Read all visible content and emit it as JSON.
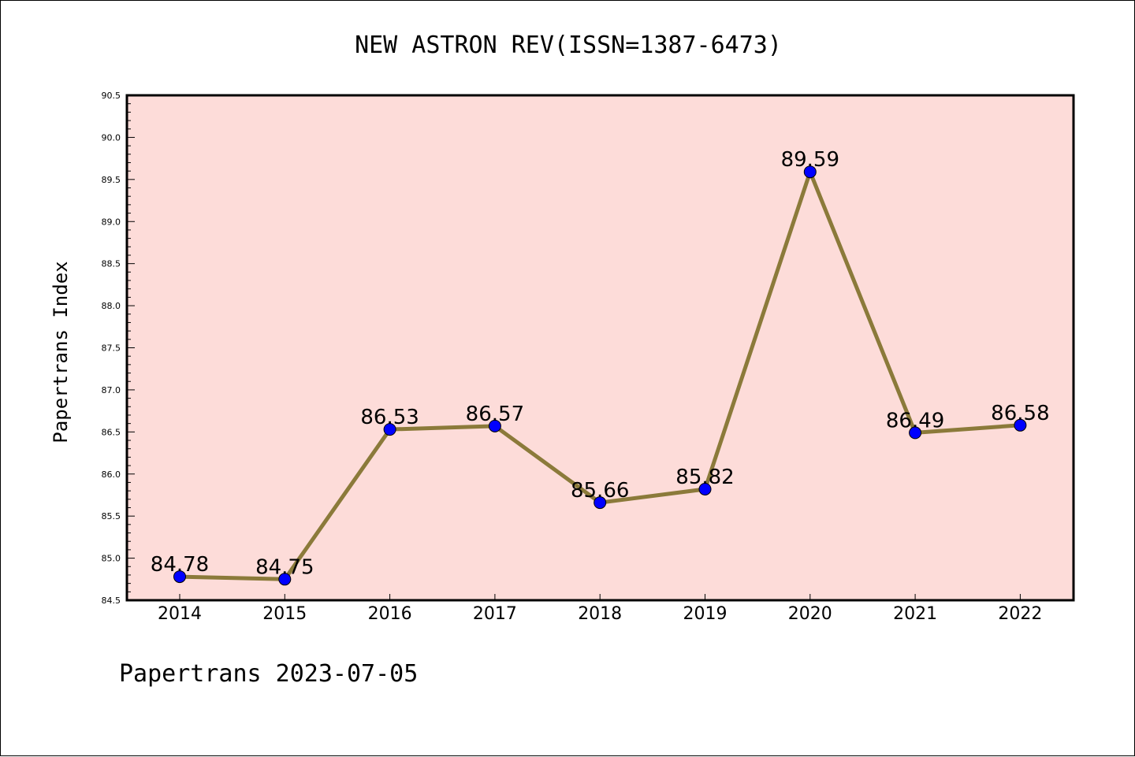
{
  "chart_data": {
    "type": "line",
    "title": "NEW ASTRON REV(ISSN=1387-6473)",
    "ylabel": "Papertrans Index",
    "xlabel": "",
    "footer": "Papertrans 2023-07-05",
    "x": [
      "2014",
      "2015",
      "2016",
      "2017",
      "2018",
      "2019",
      "2020",
      "2021",
      "2022"
    ],
    "values": [
      84.78,
      84.75,
      86.53,
      86.57,
      85.66,
      85.82,
      89.59,
      86.49,
      86.58
    ],
    "data_labels": [
      "84.78",
      "84.75",
      "86.53",
      "86.57",
      "85.66",
      "85.82",
      "89.59",
      "86.49",
      "86.58"
    ],
    "ylim": [
      84.5,
      90.5
    ],
    "yticks": [
      "84.5",
      "85.0",
      "85.5",
      "86.0",
      "86.5",
      "87.0",
      "87.5",
      "88.0",
      "88.5",
      "89.0",
      "89.5",
      "90.0",
      "90.5"
    ],
    "grid": false,
    "colors": {
      "plot_background": "#fddcd9",
      "line": "#8b7a3a",
      "marker": "#0000ff"
    }
  }
}
